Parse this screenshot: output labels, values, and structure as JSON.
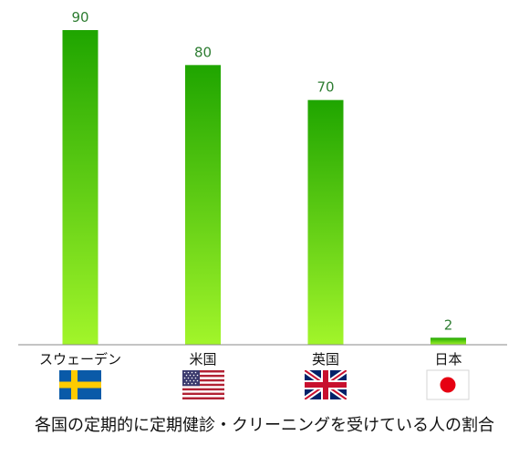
{
  "chart_data": {
    "type": "bar",
    "categories": [
      "スウェーデン",
      "米国",
      "英国",
      "日本"
    ],
    "values": [
      90,
      80,
      70,
      2
    ],
    "data_labels": [
      "90",
      "80",
      "70",
      "2"
    ],
    "title": "各国の定期的に定期健診・クリーニングを受けている人の割合",
    "xlabel": "",
    "ylabel": "",
    "ylim": [
      0,
      90
    ],
    "grid": false,
    "legend": "none",
    "bar_gradient": [
      "#1fa500",
      "#a2f52a"
    ],
    "label_color": "#2e7d32",
    "axis_color": "#888888",
    "category_flags": [
      "flag-sweden-icon",
      "flag-usa-icon",
      "flag-uk-icon",
      "flag-japan-icon"
    ]
  }
}
